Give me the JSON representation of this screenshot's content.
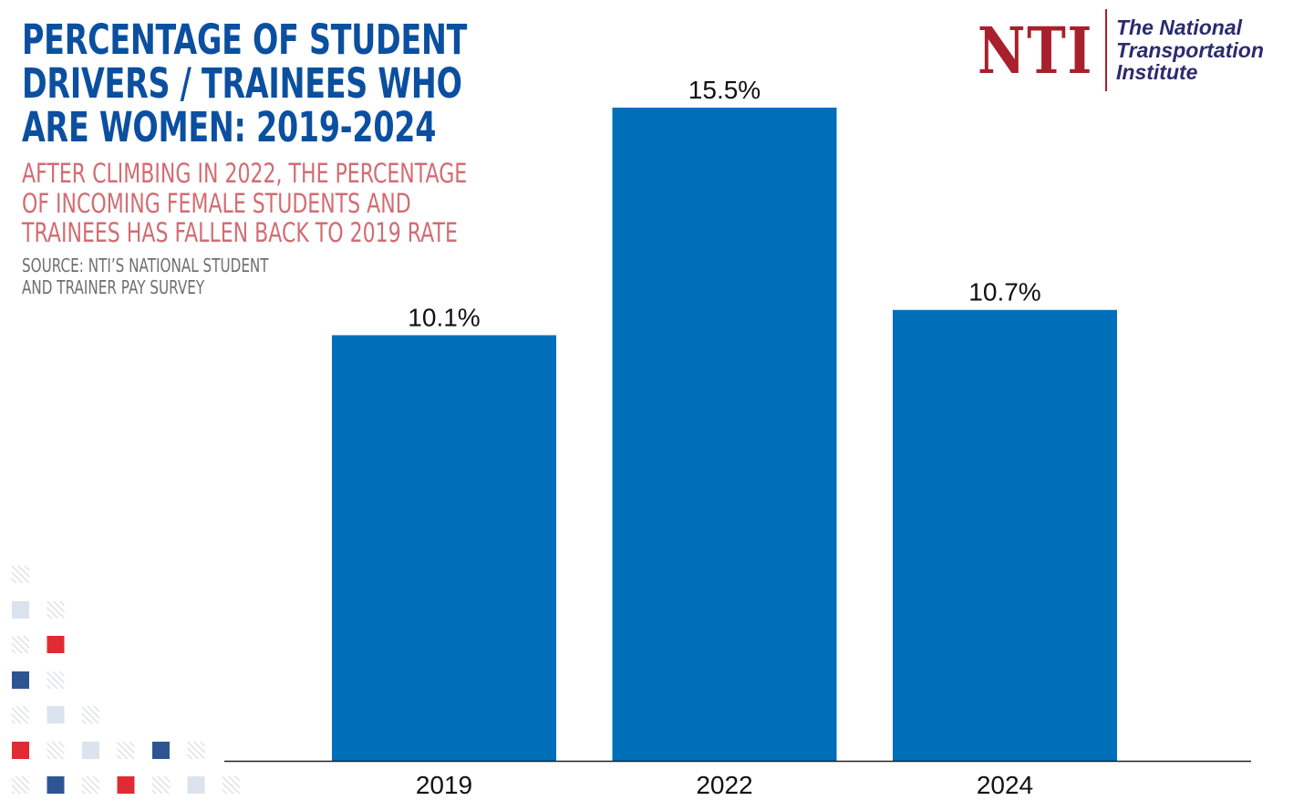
{
  "header": {
    "title_lines": [
      "PERCENTAGE OF STUDENT",
      "DRIVERS / TRAINEES WHO",
      "ARE WOMEN: 2019-2024"
    ],
    "subtitle_lines": [
      "AFTER CLIMBING IN 2022, THE PERCENTAGE",
      "OF INCOMING FEMALE STUDENTS AND",
      "TRAINEES HAS FALLEN BACK TO 2019 RATE"
    ],
    "source_lines": [
      "SOURCE: NTI’S NATIONAL STUDENT",
      "AND TRAINER PAY SURVEY"
    ]
  },
  "logo": {
    "mark": "NTI",
    "text_lines": [
      "The National",
      "Transportation",
      "Institute"
    ]
  },
  "colors": {
    "bar": "#006fb9",
    "title": "#0b4fa0",
    "subtitle": "#d36c72",
    "source": "#6f6f6f",
    "logo_red": "#a8202b",
    "logo_navy": "#2b2b6e",
    "deco_red": "#e02b35",
    "deco_blue": "#2e5593",
    "deco_light": "#dbe3ee"
  },
  "chart_data": {
    "type": "bar",
    "title": "PERCENTAGE OF STUDENT DRIVERS / TRAINEES WHO ARE WOMEN: 2019-2024",
    "categories": [
      "2019",
      "2022",
      "2024"
    ],
    "values": [
      10.1,
      15.5,
      10.7
    ],
    "value_labels": [
      "10.1%",
      "15.5%",
      "10.7%"
    ],
    "xlabel": "",
    "ylabel": "",
    "ylim": [
      0,
      15.5
    ],
    "grid": false,
    "legend": "none",
    "value_axis_visible": false
  }
}
